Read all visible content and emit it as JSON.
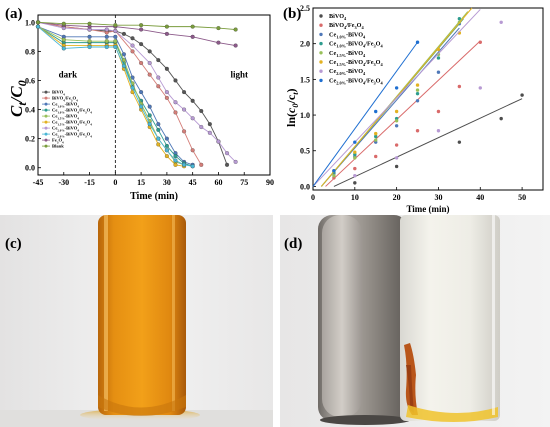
{
  "panels": {
    "a": {
      "label": "(a)"
    },
    "b": {
      "label": "(b)"
    },
    "c": {
      "label": "(c)"
    },
    "d": {
      "label": "(d)"
    }
  },
  "chart_data": [
    {
      "type": "line",
      "panel": "a",
      "xlabel": "Time (min)",
      "ylabel": "C_t/C_0",
      "xlim": [
        -45,
        90
      ],
      "ylim": [
        -0.05,
        1.05
      ],
      "xticks": [
        "-45",
        "-30",
        "-15",
        "0",
        "15",
        "30",
        "45",
        "60",
        "75",
        "90"
      ],
      "yticks": [
        "0.0",
        "0.2",
        "0.4",
        "0.6",
        "0.8",
        "1.0"
      ],
      "annotations": {
        "dark": "dark",
        "light": "light"
      },
      "divider_x": 0,
      "legend_position": "left",
      "series": [
        {
          "name": "BiVO4",
          "color": "#555555",
          "x": [
            -45,
            -30,
            -15,
            -5,
            0,
            5,
            10,
            15,
            20,
            25,
            30,
            35,
            40,
            45,
            50,
            55,
            60,
            65
          ],
          "y": [
            1.0,
            0.97,
            0.95,
            0.94,
            0.94,
            0.92,
            0.89,
            0.85,
            0.8,
            0.74,
            0.68,
            0.6,
            0.52,
            0.46,
            0.39,
            0.3,
            0.18,
            0.02
          ]
        },
        {
          "name": "BiVO4/Fe3O4",
          "color": "#d47e79",
          "x": [
            -45,
            -30,
            -15,
            -5,
            0,
            10,
            15,
            20,
            25,
            30,
            35,
            40,
            45,
            50
          ],
          "y": [
            1.0,
            0.97,
            0.95,
            0.93,
            0.94,
            0.8,
            0.72,
            0.64,
            0.56,
            0.48,
            0.38,
            0.25,
            0.12,
            0.02
          ]
        },
        {
          "name": "Ce1.0%-BiVO4",
          "color": "#4f78b8",
          "x": [
            -45,
            -30,
            -15,
            -5,
            0,
            5,
            10,
            15,
            20,
            25,
            30,
            35,
            40,
            45
          ],
          "y": [
            0.97,
            0.9,
            0.9,
            0.9,
            0.9,
            0.78,
            0.62,
            0.52,
            0.42,
            0.3,
            0.2,
            0.1,
            0.04,
            0.02
          ]
        },
        {
          "name": "Ce1.0%-BiVO4/Fe3O4",
          "color": "#2e9c8e",
          "x": [
            -45,
            -30,
            -15,
            -5,
            0,
            5,
            10,
            15,
            20,
            25,
            30,
            35,
            40,
            45
          ],
          "y": [
            0.97,
            0.86,
            0.86,
            0.86,
            0.86,
            0.72,
            0.56,
            0.46,
            0.36,
            0.26,
            0.15,
            0.08,
            0.03,
            0.01
          ]
        },
        {
          "name": "Ce1.5%-BiVO4",
          "color": "#98c05a",
          "x": [
            -45,
            -30,
            -15,
            -5,
            0,
            5,
            10,
            15,
            20,
            25,
            30,
            35,
            40
          ],
          "y": [
            0.97,
            0.88,
            0.87,
            0.87,
            0.87,
            0.74,
            0.58,
            0.44,
            0.32,
            0.2,
            0.12,
            0.04,
            0.02
          ]
        },
        {
          "name": "Ce1.5%-BiVO4/Fe3O4",
          "color": "#e3b222",
          "x": [
            -45,
            -30,
            -15,
            -5,
            0,
            5,
            10,
            15,
            20,
            25,
            30,
            35,
            40
          ],
          "y": [
            0.97,
            0.84,
            0.84,
            0.84,
            0.84,
            0.68,
            0.52,
            0.4,
            0.28,
            0.16,
            0.08,
            0.02,
            0.01
          ]
        },
        {
          "name": "Ce2.0%-BiVO4",
          "color": "#b79ad3",
          "x": [
            -45,
            -30,
            -15,
            -5,
            0,
            10,
            20,
            25,
            30,
            35,
            40,
            45,
            50,
            55,
            60,
            65,
            70
          ],
          "y": [
            1.0,
            0.96,
            0.95,
            0.95,
            0.94,
            0.84,
            0.72,
            0.62,
            0.52,
            0.45,
            0.4,
            0.34,
            0.28,
            0.24,
            0.18,
            0.1,
            0.04
          ]
        },
        {
          "name": "Ce2.0%-BiVO4/Fe3O4",
          "color": "#4ab7d6",
          "x": [
            -45,
            -30,
            -15,
            -5,
            0,
            5,
            10,
            15,
            20,
            25,
            30,
            35,
            40,
            45
          ],
          "y": [
            0.97,
            0.82,
            0.83,
            0.83,
            0.83,
            0.7,
            0.55,
            0.42,
            0.3,
            0.2,
            0.12,
            0.05,
            0.02,
            0.01
          ]
        },
        {
          "name": "Fe3O4",
          "color": "#8c5a8a",
          "x": [
            -45,
            -30,
            -15,
            0,
            15,
            30,
            45,
            60,
            70
          ],
          "y": [
            1.0,
            0.98,
            0.97,
            0.97,
            0.95,
            0.92,
            0.9,
            0.86,
            0.84
          ]
        },
        {
          "name": "Blank",
          "color": "#7a9c3c",
          "x": [
            -45,
            -30,
            -15,
            0,
            15,
            30,
            45,
            60,
            70
          ],
          "y": [
            1.0,
            0.99,
            0.99,
            0.98,
            0.98,
            0.97,
            0.97,
            0.96,
            0.95
          ]
        }
      ]
    },
    {
      "type": "scatter",
      "panel": "b",
      "xlabel": "Time (min)",
      "ylabel": "ln(c_0/c_t)",
      "xlim": [
        0,
        55
      ],
      "ylim": [
        -0.05,
        2.5
      ],
      "xticks": [
        "0",
        "10",
        "20",
        "30",
        "40",
        "50"
      ],
      "yticks": [
        "0.0",
        "0.5",
        "1.0",
        "1.5",
        "2.0",
        "2.5"
      ],
      "legend_position": "top-right",
      "series": [
        {
          "name": "BiVO4",
          "color": "#4d4d4d",
          "x": [
            10,
            20,
            35,
            45,
            50
          ],
          "y": [
            0.05,
            0.28,
            0.62,
            0.95,
            1.28
          ],
          "fit": [
            [
              5,
              0
            ],
            [
              50,
              1.23
            ]
          ]
        },
        {
          "name": "BiVO4/Fe3O4",
          "color": "#d96a6a",
          "x": [
            5,
            10,
            15,
            20,
            25,
            30,
            35,
            40
          ],
          "y": [
            0.12,
            0.25,
            0.42,
            0.58,
            0.78,
            1.05,
            1.4,
            2.02
          ],
          "fit": [
            [
              3,
              0
            ],
            [
              40,
              2.04
            ]
          ]
        },
        {
          "name": "Ce1.0%-BiVO4",
          "color": "#4f78b8",
          "x": [
            5,
            10,
            15,
            20,
            25,
            30,
            35
          ],
          "y": [
            0.18,
            0.42,
            0.62,
            0.85,
            1.2,
            1.6,
            2.28
          ],
          "fit": [
            [
              2,
              0
            ],
            [
              35,
              2.22
            ]
          ]
        },
        {
          "name": "Ce1.0%-BiVO4/Fe3O4",
          "color": "#2e9c8e",
          "x": [
            5,
            10,
            15,
            20,
            25,
            30,
            35
          ],
          "y": [
            0.2,
            0.45,
            0.7,
            0.95,
            1.3,
            1.8,
            2.35
          ],
          "fit": [
            [
              2,
              0
            ],
            [
              36,
              2.35
            ]
          ]
        },
        {
          "name": "Ce1.5%-BiVO4",
          "color": "#98c05a",
          "x": [
            5,
            10,
            15,
            20,
            25,
            30,
            35
          ],
          "y": [
            0.15,
            0.4,
            0.65,
            0.92,
            1.35,
            1.85,
            2.3
          ],
          "fit": [
            [
              2,
              0
            ],
            [
              37,
              2.45
            ]
          ]
        },
        {
          "name": "Ce1.5%-BiVO4/Fe3O4",
          "color": "#e3b222",
          "x": [
            5,
            10,
            15,
            20,
            25,
            30,
            35
          ],
          "y": [
            0.22,
            0.48,
            0.74,
            1.05,
            1.42,
            1.92,
            2.15
          ],
          "fit": [
            [
              2,
              0
            ],
            [
              38,
              2.5
            ]
          ]
        },
        {
          "name": "Ce2.0%-BiVO4",
          "color": "#b79ad3",
          "x": [
            10,
            20,
            30,
            40,
            45
          ],
          "y": [
            0.15,
            0.4,
            0.78,
            1.38,
            2.3
          ],
          "fit": [
            [
              0,
              0
            ],
            [
              40,
              2.48
            ]
          ]
        },
        {
          "name": "Ce2.0%-BiVO4/Fe3O4",
          "color": "#1f6fd1",
          "x": [
            5,
            10,
            15,
            20,
            25
          ],
          "y": [
            0.22,
            0.62,
            1.05,
            1.38,
            2.02
          ],
          "fit": [
            [
              0,
              0
            ],
            [
              25,
              2.02
            ]
          ]
        }
      ]
    }
  ],
  "legend_a": [
    "BiVO4",
    "BiVO4/Fe3O4",
    "Ce1.0%-BiVO4",
    "Ce1.0%-BiVO4/Fe3O4",
    "Ce1.5%-BiVO4",
    "Ce1.5%-BiVO4/Fe3O4",
    "Ce2.0%-BiVO4",
    "Ce2.0%-BiVO4/Fe3O4",
    "Fe3O4",
    "Blank"
  ],
  "photos": {
    "c": {
      "subject": "vial-with-orange-suspension"
    },
    "d": {
      "subject": "magnet-beside-vial-with-separated-particles"
    }
  }
}
